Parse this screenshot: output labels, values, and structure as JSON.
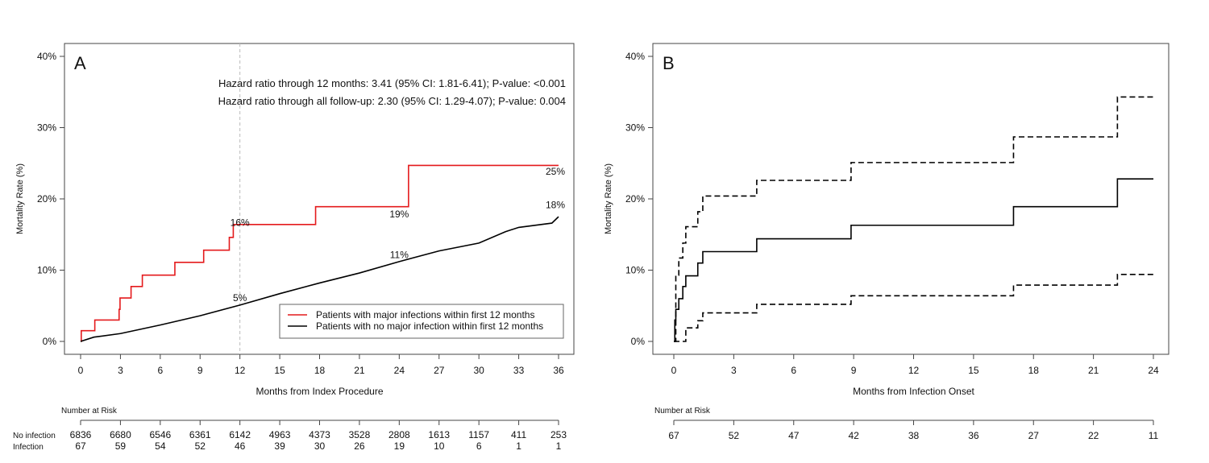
{
  "chart_data": [
    {
      "type": "line",
      "step": true,
      "panel_label": "A",
      "xlabel": "Months from Index Procedure",
      "ylabel": "Mortality Rate (%)",
      "xlim": [
        0,
        36
      ],
      "ylim": [
        0,
        40
      ],
      "xticks": [
        0,
        3,
        6,
        9,
        12,
        15,
        18,
        21,
        24,
        27,
        30,
        33,
        36
      ],
      "yticks": [
        0,
        10,
        20,
        30,
        40
      ],
      "ytick_labels": [
        "0%",
        "10%",
        "20%",
        "30%",
        "40%"
      ],
      "reference_line_x": 12,
      "grid": false,
      "legend_position": "bottom-right",
      "annotations_text": [
        "Hazard ratio through 12 months: 3.41 (95% CI: 1.81-6.41); P-value: <0.001",
        "Hazard ratio through all follow-up: 2.30 (95% CI: 1.29-4.07); P-value: 0.004"
      ],
      "series": [
        {
          "name": "Patients with major infections within first 12 months",
          "color": "#e41a1c",
          "x": [
            0,
            0.05,
            1.07,
            2.9,
            2.97,
            3.8,
            4.65,
            7.1,
            9.27,
            11.2,
            11.5,
            17.7,
            24.7,
            36
          ],
          "y": [
            0,
            1.5,
            3.0,
            4.5,
            6.1,
            7.7,
            9.3,
            11.1,
            12.8,
            14.6,
            16.4,
            18.9,
            24.7,
            24.7
          ]
        },
        {
          "name": "Patients with no major infection within first 12 months",
          "color": "#000000",
          "x": [
            0,
            1,
            3,
            6,
            9,
            12,
            15,
            18,
            21,
            24,
            27,
            30,
            32,
            33,
            35.5,
            36
          ],
          "y": [
            0,
            0.6,
            1.1,
            2.3,
            3.6,
            5.1,
            6.7,
            8.2,
            9.6,
            11.2,
            12.7,
            13.8,
            15.4,
            16.0,
            16.6,
            17.5
          ]
        }
      ],
      "point_labels": [
        {
          "x": 12,
          "y": 16,
          "text": "16%",
          "series": 0
        },
        {
          "x": 24,
          "y": 19,
          "text": "19%",
          "series": 0
        },
        {
          "x": 36,
          "y": 25,
          "text": "25%",
          "series": 0
        },
        {
          "x": 12,
          "y": 5,
          "text": "5%",
          "series": 1
        },
        {
          "x": 24,
          "y": 11,
          "text": "11%",
          "series": 1
        },
        {
          "x": 36,
          "y": 18,
          "text": "18%",
          "series": 1
        }
      ],
      "risk_table": {
        "title": "Number at Risk",
        "rows": [
          {
            "label": "No infection",
            "values": [
              6836,
              6680,
              6546,
              6361,
              6142,
              4963,
              4373,
              3528,
              2808,
              1613,
              1157,
              411,
              253
            ]
          },
          {
            "label": "Infection",
            "values": [
              67,
              59,
              54,
              52,
              46,
              39,
              30,
              26,
              19,
              10,
              6,
              1,
              1
            ]
          }
        ]
      }
    },
    {
      "type": "line",
      "step": true,
      "panel_label": "B",
      "xlabel": "Months from Infection Onset",
      "ylabel": "Mortality Rate (%)",
      "xlim": [
        0,
        24
      ],
      "ylim": [
        0,
        40
      ],
      "xticks": [
        0,
        3,
        6,
        9,
        12,
        15,
        18,
        21,
        24
      ],
      "yticks": [
        0,
        10,
        20,
        30,
        40
      ],
      "ytick_labels": [
        "0%",
        "10%",
        "20%",
        "30%",
        "40%"
      ],
      "grid": false,
      "series": [
        {
          "style": "solid",
          "color": "#000000",
          "x": [
            0,
            0.05,
            0.1,
            0.25,
            0.45,
            0.6,
            1.2,
            1.45,
            4.15,
            8.87,
            17,
            22.2,
            24
          ],
          "y": [
            0,
            3,
            4.5,
            6,
            7.7,
            9.2,
            11,
            12.6,
            14.4,
            16.3,
            18.9,
            22.8,
            22.8
          ]
        },
        {
          "style": "dashed",
          "color": "#000000",
          "x": [
            0,
            0.1,
            0.25,
            0.45,
            0.6,
            1.2,
            1.45,
            4.15,
            8.87,
            17,
            22.2,
            24
          ],
          "y": [
            0,
            9.3,
            11.7,
            13.8,
            16.1,
            18.2,
            20.4,
            22.6,
            25.1,
            28.7,
            34.3,
            34.3
          ]
        },
        {
          "style": "dashed",
          "color": "#000000",
          "x": [
            0,
            0.6,
            1.2,
            1.45,
            4.15,
            8.87,
            17,
            22.2,
            24
          ],
          "y": [
            0,
            1.9,
            2.9,
            4.0,
            5.2,
            6.4,
            7.9,
            9.4,
            9.4
          ]
        }
      ],
      "risk_table": {
        "title": "Number at Risk",
        "rows": [
          {
            "label": "",
            "values": [
              67,
              52,
              47,
              42,
              38,
              36,
              27,
              22,
              11
            ]
          }
        ]
      }
    }
  ]
}
